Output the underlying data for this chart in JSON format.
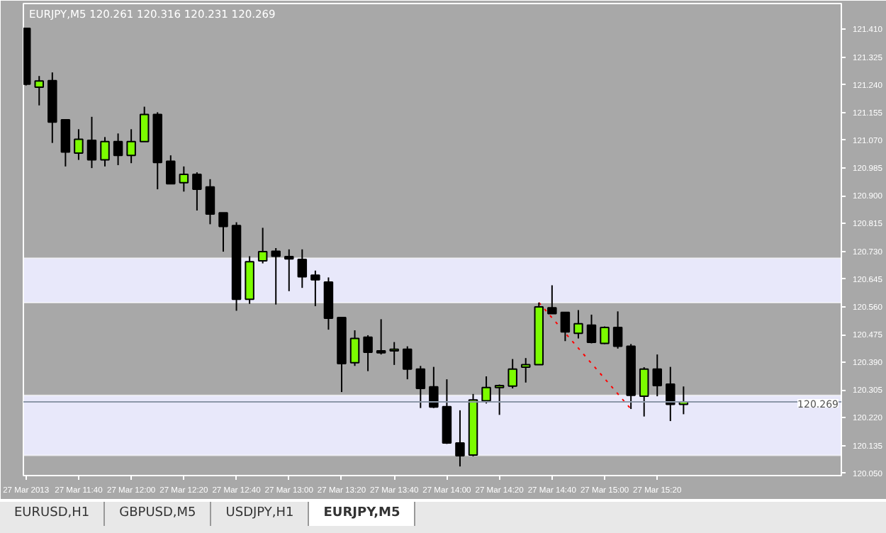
{
  "chart_data": {
    "type": "candlestick",
    "title": "EURJPY,M5  120.261 120.316 120.231 120.269",
    "x": [
      "2013-03-27T11:20",
      "2013-03-27T11:25",
      "2013-03-27T11:30",
      "2013-03-27T11:35",
      "2013-03-27T11:40",
      "2013-03-27T11:45",
      "2013-03-27T11:50",
      "2013-03-27T11:55",
      "2013-03-27T12:00",
      "2013-03-27T12:05",
      "2013-03-27T12:10",
      "2013-03-27T12:15",
      "2013-03-27T12:20",
      "2013-03-27T12:25",
      "2013-03-27T12:30",
      "2013-03-27T12:35",
      "2013-03-27T12:40",
      "2013-03-27T12:45",
      "2013-03-27T12:50",
      "2013-03-27T12:55",
      "2013-03-27T13:00",
      "2013-03-27T13:05",
      "2013-03-27T13:10",
      "2013-03-27T13:15",
      "2013-03-27T13:20",
      "2013-03-27T13:25",
      "2013-03-27T13:30",
      "2013-03-27T13:35",
      "2013-03-27T13:40",
      "2013-03-27T13:45",
      "2013-03-27T13:50",
      "2013-03-27T13:55",
      "2013-03-27T14:00",
      "2013-03-27T14:05",
      "2013-03-27T14:10",
      "2013-03-27T14:15",
      "2013-03-27T14:20",
      "2013-03-27T14:25",
      "2013-03-27T14:30",
      "2013-03-27T14:35",
      "2013-03-27T14:40",
      "2013-03-27T14:45",
      "2013-03-27T14:50",
      "2013-03-27T14:55",
      "2013-03-27T15:00",
      "2013-03-27T15:05",
      "2013-03-27T15:10",
      "2013-03-27T15:15",
      "2013-03-27T15:20",
      "2013-03-27T15:25",
      "2013-03-27T15:30"
    ],
    "ohlc": [
      [
        121.413,
        121.413,
        121.238,
        121.242
      ],
      [
        121.233,
        121.267,
        121.177,
        121.252
      ],
      [
        121.253,
        121.278,
        121.062,
        121.126
      ],
      [
        121.133,
        121.133,
        120.99,
        121.034
      ],
      [
        121.031,
        121.104,
        121.01,
        121.073
      ],
      [
        121.07,
        121.142,
        120.985,
        121.01
      ],
      [
        121.01,
        121.08,
        120.99,
        121.066
      ],
      [
        121.066,
        121.091,
        120.994,
        121.024
      ],
      [
        121.024,
        121.104,
        121.0,
        121.066
      ],
      [
        121.066,
        121.173,
        121.066,
        121.149
      ],
      [
        121.149,
        121.156,
        120.92,
        121.002
      ],
      [
        121.006,
        121.024,
        120.937,
        120.937
      ],
      [
        120.94,
        120.99,
        120.913,
        120.966
      ],
      [
        120.966,
        120.972,
        120.855,
        120.92
      ],
      [
        120.927,
        120.951,
        120.813,
        120.844
      ],
      [
        120.848,
        120.848,
        120.729,
        120.806
      ],
      [
        120.809,
        120.819,
        120.548,
        120.583
      ],
      [
        120.583,
        120.715,
        120.569,
        120.698
      ],
      [
        120.701,
        120.802,
        120.693,
        120.729
      ],
      [
        120.73,
        120.74,
        120.567,
        120.715
      ],
      [
        120.714,
        120.736,
        120.608,
        120.707
      ],
      [
        120.705,
        120.736,
        120.618,
        120.652
      ],
      [
        120.657,
        120.671,
        120.562,
        120.643
      ],
      [
        120.636,
        120.65,
        120.49,
        120.525
      ],
      [
        120.527,
        120.527,
        120.299,
        120.386
      ],
      [
        120.389,
        120.488,
        120.379,
        120.463
      ],
      [
        120.467,
        120.473,
        120.363,
        120.421
      ],
      [
        120.425,
        120.522,
        120.414,
        120.419
      ],
      [
        120.425,
        120.452,
        120.382,
        120.43
      ],
      [
        120.43,
        120.439,
        120.338,
        120.369
      ],
      [
        120.369,
        120.379,
        120.25,
        120.31
      ],
      [
        120.315,
        120.376,
        120.25,
        120.253
      ],
      [
        120.254,
        120.338,
        120.14,
        120.143
      ],
      [
        120.143,
        120.243,
        120.071,
        120.104
      ],
      [
        120.106,
        120.293,
        120.102,
        120.275
      ],
      [
        120.272,
        120.347,
        120.264,
        120.313
      ],
      [
        120.313,
        120.322,
        120.229,
        120.319
      ],
      [
        120.317,
        120.4,
        120.31,
        120.369
      ],
      [
        120.375,
        120.403,
        120.328,
        120.383
      ],
      [
        120.383,
        120.573,
        120.383,
        120.56
      ],
      [
        120.557,
        120.626,
        120.539,
        120.539
      ],
      [
        120.543,
        120.543,
        120.455,
        120.483
      ],
      [
        120.479,
        120.55,
        120.463,
        120.508
      ],
      [
        120.504,
        120.536,
        120.448,
        120.451
      ],
      [
        120.448,
        120.5,
        120.446,
        120.497
      ],
      [
        120.497,
        120.546,
        120.432,
        120.439
      ],
      [
        120.439,
        120.446,
        120.247,
        120.289
      ],
      [
        120.286,
        120.375,
        120.224,
        120.369
      ],
      [
        120.369,
        120.414,
        120.286,
        120.319
      ],
      [
        120.323,
        120.376,
        120.21,
        120.261
      ],
      [
        120.261,
        120.316,
        120.231,
        120.269
      ]
    ],
    "colors": [
      "#000000",
      "#7cfc00",
      "#000000",
      "#000000",
      "#7cfc00",
      "#000000",
      "#7cfc00",
      "#000000",
      "#7cfc00",
      "#7cfc00",
      "#000000",
      "#000000",
      "#7cfc00",
      "#000000",
      "#000000",
      "#000000",
      "#000000",
      "#7cfc00",
      "#7cfc00",
      "#000000",
      "#000000",
      "#000000",
      "#000000",
      "#000000",
      "#000000",
      "#7cfc00",
      "#000000",
      "#000000",
      "#7cfc00",
      "#000000",
      "#000000",
      "#000000",
      "#000000",
      "#000000",
      "#7cfc00",
      "#7cfc00",
      "#7cfc00",
      "#7cfc00",
      "#7cfc00",
      "#7cfc00",
      "#000000",
      "#000000",
      "#7cfc00",
      "#000000",
      "#7cfc00",
      "#000000",
      "#000000",
      "#7cfc00",
      "#000000",
      "#000000",
      "#7cfc00"
    ],
    "series": [
      {
        "type": "line",
        "x": [
          "2013-03-27T14:35",
          "2013-03-27T15:10"
        ],
        "values": [
          120.573,
          120.247
        ],
        "color": "#ff0000",
        "line_style": "dotted"
      }
    ],
    "xlim": [
      "2013-03-27T11:19",
      "2013-03-27T16:30"
    ],
    "xticks": [
      {
        "value": "2013-03-27T11:20",
        "label": "27 Mar 2013"
      },
      {
        "value": "2013-03-27T11:40",
        "label": "27 Mar 11:40"
      },
      {
        "value": "2013-03-27T12:00",
        "label": "27 Mar 12:00"
      },
      {
        "value": "2013-03-27T12:20",
        "label": "27 Mar 12:20"
      },
      {
        "value": "2013-03-27T12:40",
        "label": "27 Mar 12:40"
      },
      {
        "value": "2013-03-27T13:00",
        "label": "27 Mar 13:00"
      },
      {
        "value": "2013-03-27T13:20",
        "label": "27 Mar 13:20"
      },
      {
        "value": "2013-03-27T13:40",
        "label": "27 Mar 13:40"
      },
      {
        "value": "2013-03-27T14:00",
        "label": "27 Mar 14:00"
      },
      {
        "value": "2013-03-27T14:20",
        "label": "27 Mar 14:20"
      },
      {
        "value": "2013-03-27T14:40",
        "label": "27 Mar 14:40"
      },
      {
        "value": "2013-03-27T15:00",
        "label": "27 Mar 15:00"
      },
      {
        "value": "2013-03-27T15:20",
        "label": "27 Mar 15:20"
      }
    ],
    "ylim": [
      120.043,
      121.489
    ],
    "yticks": [
      {
        "value": 121.41,
        "label": "121.410"
      },
      121.325,
      {
        "value": 121.24,
        "label": "121.240"
      },
      121.155,
      {
        "value": 121.07,
        "label": "121.070"
      },
      120.985,
      {
        "value": 120.9,
        "label": "120.900"
      },
      120.815,
      {
        "value": 120.73,
        "label": "120.730"
      },
      120.645,
      {
        "value": 120.56,
        "label": "120.560"
      },
      120.475,
      {
        "value": 120.39,
        "label": "120.390"
      },
      120.305,
      {
        "value": 120.22,
        "label": "120.220"
      },
      120.135,
      {
        "value": 120.05,
        "label": "120.050"
      }
    ],
    "bands": [
      {
        "axis": "y",
        "from": 120.573,
        "to": 120.709,
        "color": "#e8e8fa"
      },
      {
        "axis": "y",
        "from": 120.105,
        "to": 120.289,
        "color": "#e8e8fa"
      }
    ],
    "ref_lines": [
      {
        "axis": "y",
        "value": 120.269,
        "label": "120.269",
        "color": "#8c98a8"
      }
    ],
    "annotations": [
      "EURUSD,H1",
      "GBPUSD,M5",
      "USDJPY,H1",
      "EURJPY,M5"
    ],
    "grid": false
  }
}
